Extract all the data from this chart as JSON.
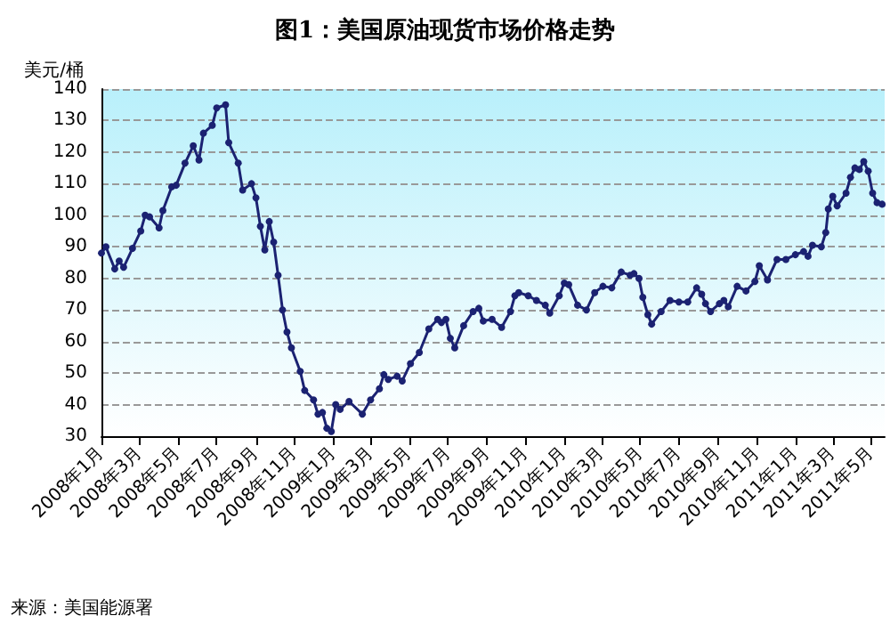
{
  "chart_data": {
    "type": "line",
    "title": "图1：美国原油现货市场价格走势",
    "ylabel": "美元/桶",
    "annotations": [
      "来源：美国能源署"
    ],
    "x": [
      "2008-01-01",
      "2008-01-08",
      "2008-01-22",
      "2008-01-29",
      "2008-02-05",
      "2008-02-19",
      "2008-03-03",
      "2008-03-10",
      "2008-03-17",
      "2008-04-01",
      "2008-04-07",
      "2008-04-21",
      "2008-04-28",
      "2008-05-12",
      "2008-05-25",
      "2008-06-03",
      "2008-06-10",
      "2008-06-24",
      "2008-07-01",
      "2008-07-15",
      "2008-07-20",
      "2008-08-04",
      "2008-08-11",
      "2008-08-25",
      "2008-09-01",
      "2008-09-08",
      "2008-09-15",
      "2008-09-22",
      "2008-09-29",
      "2008-10-06",
      "2008-10-13",
      "2008-10-20",
      "2008-10-27",
      "2008-11-10",
      "2008-11-17",
      "2008-12-01",
      "2008-12-08",
      "2008-12-15",
      "2008-12-22",
      "2008-12-29",
      "2009-01-05",
      "2009-01-12",
      "2009-01-26",
      "2009-02-16",
      "2009-03-01",
      "2009-03-15",
      "2009-03-22",
      "2009-03-29",
      "2009-04-12",
      "2009-04-20",
      "2009-05-03",
      "2009-05-17",
      "2009-06-01",
      "2009-06-15",
      "2009-06-21",
      "2009-06-28",
      "2009-07-05",
      "2009-07-12",
      "2009-07-26",
      "2009-08-10",
      "2009-08-19",
      "2009-08-26",
      "2009-09-09",
      "2009-09-24",
      "2009-10-08",
      "2009-10-15",
      "2009-10-21",
      "2009-11-05",
      "2009-11-18",
      "2009-12-02",
      "2009-12-09",
      "2009-12-24",
      "2010-01-01",
      "2010-01-08",
      "2010-01-22",
      "2010-02-05",
      "2010-02-18",
      "2010-03-03",
      "2010-03-17",
      "2010-04-01",
      "2010-04-15",
      "2010-04-21",
      "2010-04-29",
      "2010-05-05",
      "2010-05-13",
      "2010-05-19",
      "2010-06-03",
      "2010-06-17",
      "2010-07-01",
      "2010-07-15",
      "2010-07-29",
      "2010-08-06",
      "2010-08-12",
      "2010-08-20",
      "2010-09-03",
      "2010-09-10",
      "2010-09-17",
      "2010-10-01",
      "2010-10-15",
      "2010-10-29",
      "2010-11-05",
      "2010-11-18",
      "2010-12-03",
      "2010-12-17",
      "2011-01-01",
      "2011-01-14",
      "2011-01-21",
      "2011-01-28",
      "2011-02-11",
      "2011-02-18",
      "2011-02-22",
      "2011-03-01",
      "2011-03-08",
      "2011-03-22",
      "2011-03-29",
      "2011-04-05",
      "2011-04-12",
      "2011-04-19",
      "2011-04-26",
      "2011-05-03",
      "2011-05-10",
      "2011-05-18"
    ],
    "series": [
      {
        "color": "#1b2272",
        "values": [
          88,
          90,
          83,
          85.5,
          83.5,
          89.5,
          95,
          100,
          99.5,
          96,
          101.5,
          109,
          109.5,
          116.5,
          122,
          117.5,
          126,
          128.5,
          134,
          135,
          123,
          116.5,
          108,
          110,
          105.5,
          96.5,
          89,
          98,
          91.5,
          81,
          70,
          63,
          58,
          50.5,
          44.5,
          41.5,
          37,
          37.5,
          32.5,
          31.5,
          40,
          38.5,
          41,
          37,
          41.5,
          45,
          49.5,
          48,
          49,
          47.5,
          53,
          56.5,
          64,
          67,
          66,
          67,
          61,
          58,
          65,
          69.5,
          70.5,
          66.5,
          67,
          64.5,
          69.5,
          74.5,
          75.5,
          74.5,
          73,
          71.5,
          69,
          74.5,
          78.5,
          78,
          71.5,
          70,
          75.5,
          77.5,
          77,
          82,
          81,
          81.5,
          80,
          74,
          68.5,
          65.5,
          69.5,
          73,
          72.5,
          72.5,
          77,
          75,
          72,
          69.5,
          72,
          73,
          71,
          77.5,
          76,
          79,
          84,
          79.5,
          86,
          86,
          87.5,
          88.5,
          87,
          90.5,
          90,
          94.5,
          102,
          106,
          103,
          107,
          112,
          115,
          114.5,
          117,
          114,
          107,
          104,
          103.5
        ]
      }
    ],
    "xlim": [
      "2008-01-01",
      "2011-05-22"
    ],
    "xticks": [
      {
        "value": "2008-01-01",
        "label": "2008年1月"
      },
      {
        "value": "2008-03-01",
        "label": "2008年3月"
      },
      {
        "value": "2008-05-01",
        "label": "2008年5月"
      },
      {
        "value": "2008-07-01",
        "label": "2008年7月"
      },
      {
        "value": "2008-09-01",
        "label": "2008年9月"
      },
      {
        "value": "2008-11-01",
        "label": "2008年11月"
      },
      {
        "value": "2009-01-01",
        "label": "2009年1月"
      },
      {
        "value": "2009-03-01",
        "label": "2009年3月"
      },
      {
        "value": "2009-05-01",
        "label": "2009年5月"
      },
      {
        "value": "2009-07-01",
        "label": "2009年7月"
      },
      {
        "value": "2009-09-01",
        "label": "2009年9月"
      },
      {
        "value": "2009-11-01",
        "label": "2009年11月"
      },
      {
        "value": "2010-01-01",
        "label": "2010年1月"
      },
      {
        "value": "2010-03-01",
        "label": "2010年3月"
      },
      {
        "value": "2010-05-01",
        "label": "2010年5月"
      },
      {
        "value": "2010-07-01",
        "label": "2010年7月"
      },
      {
        "value": "2010-09-01",
        "label": "2010年9月"
      },
      {
        "value": "2010-11-01",
        "label": "2010年11月"
      },
      {
        "value": "2011-01-01",
        "label": "2011年1月"
      },
      {
        "value": "2011-03-01",
        "label": "2011年3月"
      },
      {
        "value": "2011-05-01",
        "label": "2011年5月"
      }
    ],
    "ylim": [
      30,
      140
    ],
    "yticks": [
      30,
      40,
      50,
      60,
      70,
      80,
      90,
      100,
      110,
      120,
      130,
      140
    ],
    "grid": "y",
    "marker": "circle",
    "line_style": "solid"
  }
}
